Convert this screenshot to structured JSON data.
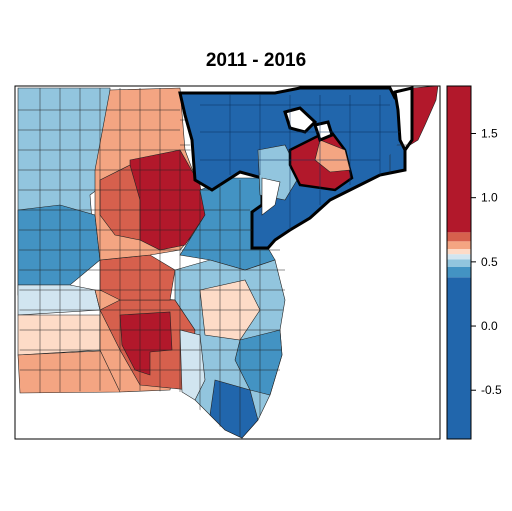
{
  "title": "2011 - 2016",
  "colors": {
    "dark_blue": "#2166ac",
    "mid_blue": "#4393c3",
    "light_blue": "#92c5de",
    "pale_blue": "#d1e5f0",
    "neutral": "#f7f7f7",
    "pale_red": "#fddbc7",
    "light_red": "#f4a582",
    "mid_red": "#d6604d",
    "dark_red": "#b2182b",
    "outline": "#000000"
  },
  "legend": {
    "min": -0.88,
    "max": 1.87,
    "ticks": [
      {
        "value": -0.5,
        "label": "-0.5"
      },
      {
        "value": 0.0,
        "label": "0.0"
      },
      {
        "value": 0.5,
        "label": "0.5"
      },
      {
        "value": 1.0,
        "label": "1.0"
      },
      {
        "value": 1.5,
        "label": "1.5"
      }
    ],
    "bins": [
      {
        "from": -0.88,
        "to": 0.38,
        "color": "#2166ac"
      },
      {
        "from": 0.38,
        "to": 0.46,
        "color": "#4393c3"
      },
      {
        "from": 0.46,
        "to": 0.52,
        "color": "#92c5de"
      },
      {
        "from": 0.52,
        "to": 0.56,
        "color": "#d1e5f0"
      },
      {
        "from": 0.56,
        "to": 0.6,
        "color": "#fddbc7"
      },
      {
        "from": 0.6,
        "to": 0.66,
        "color": "#f4a582"
      },
      {
        "from": 0.66,
        "to": 0.73,
        "color": "#d6604d"
      },
      {
        "from": 0.73,
        "to": 1.87,
        "color": "#b2182b"
      }
    ]
  }
}
